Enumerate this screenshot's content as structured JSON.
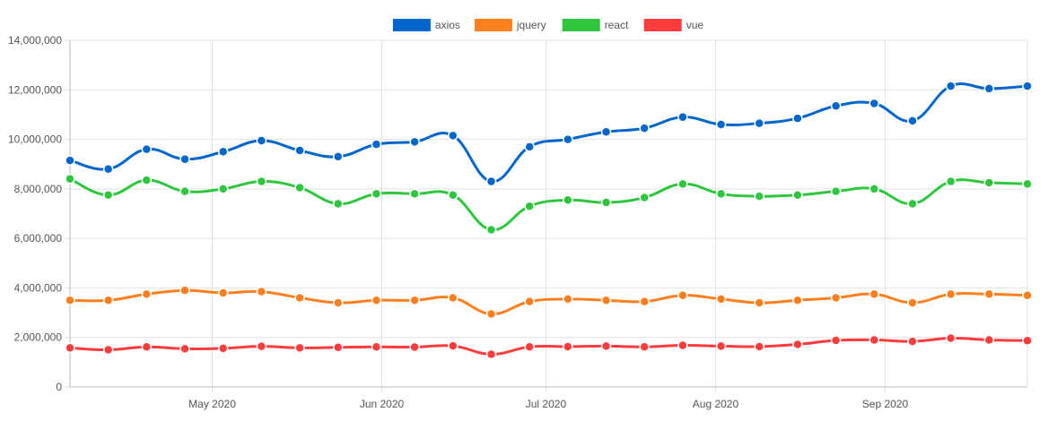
{
  "chart_data": {
    "type": "line",
    "ylim": [
      0,
      14000000
    ],
    "y_ticks": [
      "0",
      "2,000,000",
      "4,000,000",
      "6,000,000",
      "8,000,000",
      "10,000,000",
      "12,000,000",
      "14,000,000"
    ],
    "y_tick_values": [
      0,
      2000000,
      4000000,
      6000000,
      8000000,
      10000000,
      12000000,
      14000000
    ],
    "xlim": [
      "2020-04-05",
      "2020-09-27"
    ],
    "x_ticks": [
      {
        "label": "May 2020",
        "date": "2020-05-01"
      },
      {
        "label": "Jun 2020",
        "date": "2020-06-01"
      },
      {
        "label": "Jul 2020",
        "date": "2020-07-01"
      },
      {
        "label": "Aug 2020",
        "date": "2020-08-01"
      },
      {
        "label": "Sep 2020",
        "date": "2020-09-01"
      }
    ],
    "x": [
      "2020-04-05",
      "2020-04-12",
      "2020-04-19",
      "2020-04-26",
      "2020-05-03",
      "2020-05-10",
      "2020-05-17",
      "2020-05-24",
      "2020-05-31",
      "2020-06-07",
      "2020-06-14",
      "2020-06-21",
      "2020-06-28",
      "2020-07-05",
      "2020-07-12",
      "2020-07-19",
      "2020-07-26",
      "2020-08-02",
      "2020-08-09",
      "2020-08-16",
      "2020-08-23",
      "2020-08-30",
      "2020-09-06",
      "2020-09-13",
      "2020-09-20",
      "2020-09-27"
    ],
    "legend_position": "top",
    "grid": true,
    "series": [
      {
        "name": "axios",
        "color": "#0066cc",
        "values": [
          9150000,
          8800000,
          9600000,
          9200000,
          9500000,
          9950000,
          9550000,
          9300000,
          9800000,
          9900000,
          10150000,
          8300000,
          9700000,
          10000000,
          10300000,
          10450000,
          10900000,
          10600000,
          10650000,
          10850000,
          11350000,
          11450000,
          10750000,
          12150000,
          12050000,
          12150000
        ]
      },
      {
        "name": "jquery",
        "color": "#ff7f1e",
        "values": [
          3500000,
          3500000,
          3750000,
          3900000,
          3800000,
          3850000,
          3600000,
          3400000,
          3500000,
          3500000,
          3600000,
          2950000,
          3450000,
          3550000,
          3500000,
          3450000,
          3700000,
          3550000,
          3400000,
          3500000,
          3600000,
          3750000,
          3400000,
          3750000,
          3750000,
          3700000
        ]
      },
      {
        "name": "react",
        "color": "#2ec63e",
        "values": [
          8400000,
          7750000,
          8350000,
          7900000,
          8000000,
          8300000,
          8050000,
          7400000,
          7800000,
          7800000,
          7750000,
          6350000,
          7300000,
          7550000,
          7450000,
          7650000,
          8200000,
          7800000,
          7700000,
          7750000,
          7900000,
          8000000,
          7400000,
          8300000,
          8250000,
          8200000
        ]
      },
      {
        "name": "vue",
        "color": "#ff3b3b",
        "values": [
          1580000,
          1500000,
          1620000,
          1540000,
          1560000,
          1640000,
          1580000,
          1600000,
          1620000,
          1610000,
          1660000,
          1320000,
          1620000,
          1630000,
          1650000,
          1620000,
          1680000,
          1650000,
          1630000,
          1720000,
          1880000,
          1900000,
          1840000,
          1970000,
          1900000,
          1870000
        ]
      }
    ]
  }
}
